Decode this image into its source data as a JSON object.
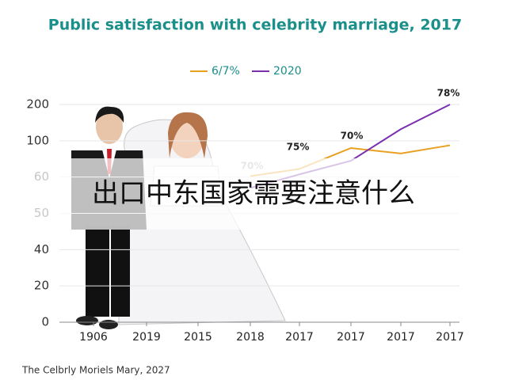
{
  "chart_data": {
    "type": "line",
    "title": "Public satisfaction with celebrity marriage, 2017",
    "categories": [
      "1906",
      "2019",
      "2015",
      "2018",
      "2017",
      "2017",
      "2017",
      "2017"
    ],
    "series": [
      {
        "name": "6/7%",
        "color": "#e8a020",
        "values": [
          null,
          null,
          null,
          61,
          69,
          92,
          86,
          95
        ]
      },
      {
        "name": "2020",
        "color": "#7a2fb0",
        "values": [
          null,
          null,
          null,
          57,
          63,
          78,
          132,
          200
        ]
      }
    ],
    "ylim": [
      0,
      200
    ],
    "yticks": [
      200,
      100,
      60,
      50,
      40,
      20,
      0
    ],
    "grid": true,
    "annotations": [
      "70%",
      "75%",
      "70%",
      "78%"
    ],
    "footer": "The Celbrly Moriels Mary, 2027",
    "overlay_text": "出口中东国家需要注意什么"
  }
}
